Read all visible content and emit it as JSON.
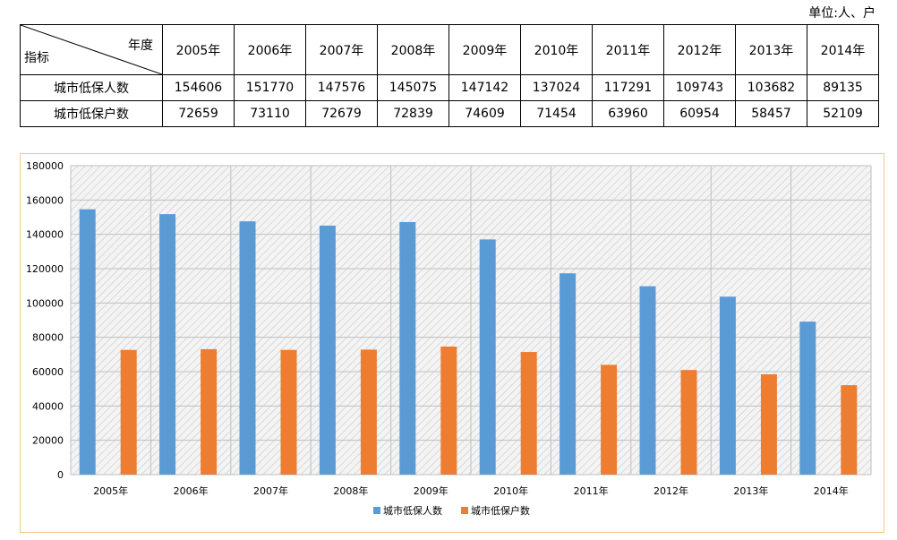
{
  "unit_label": "单位:人、户",
  "table": {
    "corner_top": "年度",
    "corner_bottom": "指标",
    "years": [
      "2005年",
      "2006年",
      "2007年",
      "2008年",
      "2009年",
      "2010年",
      "2011年",
      "2012年",
      "2013年",
      "2014年"
    ],
    "rows": [
      {
        "label": "城市低保人数",
        "values": [
          "154606",
          "151770",
          "147576",
          "145075",
          "147142",
          "137024",
          "117291",
          "109743",
          "103682",
          "89135"
        ]
      },
      {
        "label": "城市低保户数",
        "values": [
          "72659",
          "73110",
          "72679",
          "72839",
          "74609",
          "71454",
          "63960",
          "60954",
          "58457",
          "52109"
        ]
      }
    ]
  },
  "chart_data": {
    "type": "bar",
    "title": "",
    "xlabel": "",
    "ylabel": "",
    "categories": [
      "2005年",
      "2006年",
      "2007年",
      "2008年",
      "2009年",
      "2010年",
      "2011年",
      "2012年",
      "2013年",
      "2014年"
    ],
    "series": [
      {
        "name": "城市低保人数",
        "color": "#5b9bd5",
        "values": [
          154606,
          151770,
          147576,
          145075,
          147142,
          137024,
          117291,
          109743,
          103682,
          89135
        ]
      },
      {
        "name": "城市低保户数",
        "color": "#ed7d31",
        "values": [
          72659,
          73110,
          72679,
          72839,
          74609,
          71454,
          63960,
          60954,
          58457,
          52109
        ]
      }
    ],
    "ylim": [
      0,
      180000
    ],
    "yticks": [
      0,
      20000,
      40000,
      60000,
      80000,
      100000,
      120000,
      140000,
      160000,
      180000
    ],
    "ytick_labels": [
      "0",
      "20000",
      "40000",
      "60000",
      "80000",
      "100000",
      "120000",
      "140000",
      "160000",
      "180000"
    ],
    "grid": true,
    "legend": "bottom-center"
  }
}
